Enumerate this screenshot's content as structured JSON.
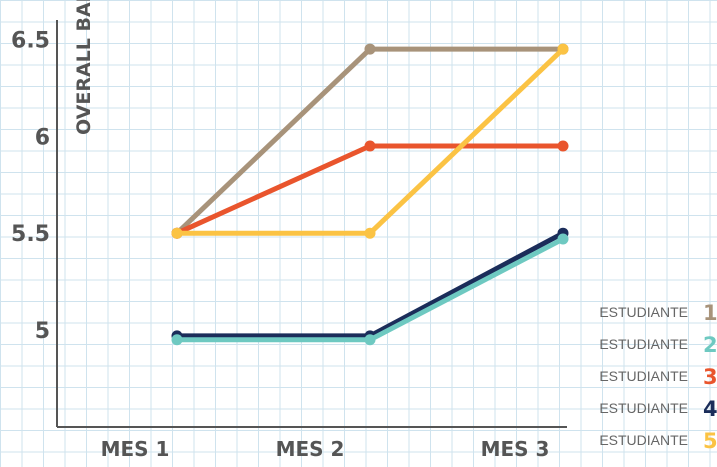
{
  "chart_data": {
    "type": "line",
    "ylabel": "OVERALL BAND",
    "xlabel": "",
    "categories": [
      "MES 1",
      "MES 2",
      "MES 3"
    ],
    "ylim": [
      4.5,
      6.6
    ],
    "yticks": [
      5,
      5.5,
      6,
      6.5
    ],
    "grid": true,
    "legend_position": "right",
    "series": [
      {
        "label": "ESTUDIANTE",
        "number": "1",
        "color": "#a8937a",
        "values": [
          5.5,
          6.45,
          6.45
        ]
      },
      {
        "label": "ESTUDIANTE",
        "number": "3",
        "color": "#e9552d",
        "values": [
          5.5,
          5.95,
          5.95
        ]
      },
      {
        "label": "ESTUDIANTE",
        "number": "5",
        "color": "#fbc344",
        "values": [
          5.5,
          5.5,
          6.45
        ]
      },
      {
        "label": "ESTUDIANTE",
        "number": "4",
        "color": "#1b2d5a",
        "values": [
          4.97,
          4.97,
          5.5
        ]
      },
      {
        "label": "ESTUDIANTE",
        "number": "2",
        "color": "#6ec9c1",
        "values": [
          4.95,
          4.95,
          5.47
        ]
      }
    ],
    "legend_order": [
      0,
      4,
      1,
      3,
      2
    ]
  }
}
